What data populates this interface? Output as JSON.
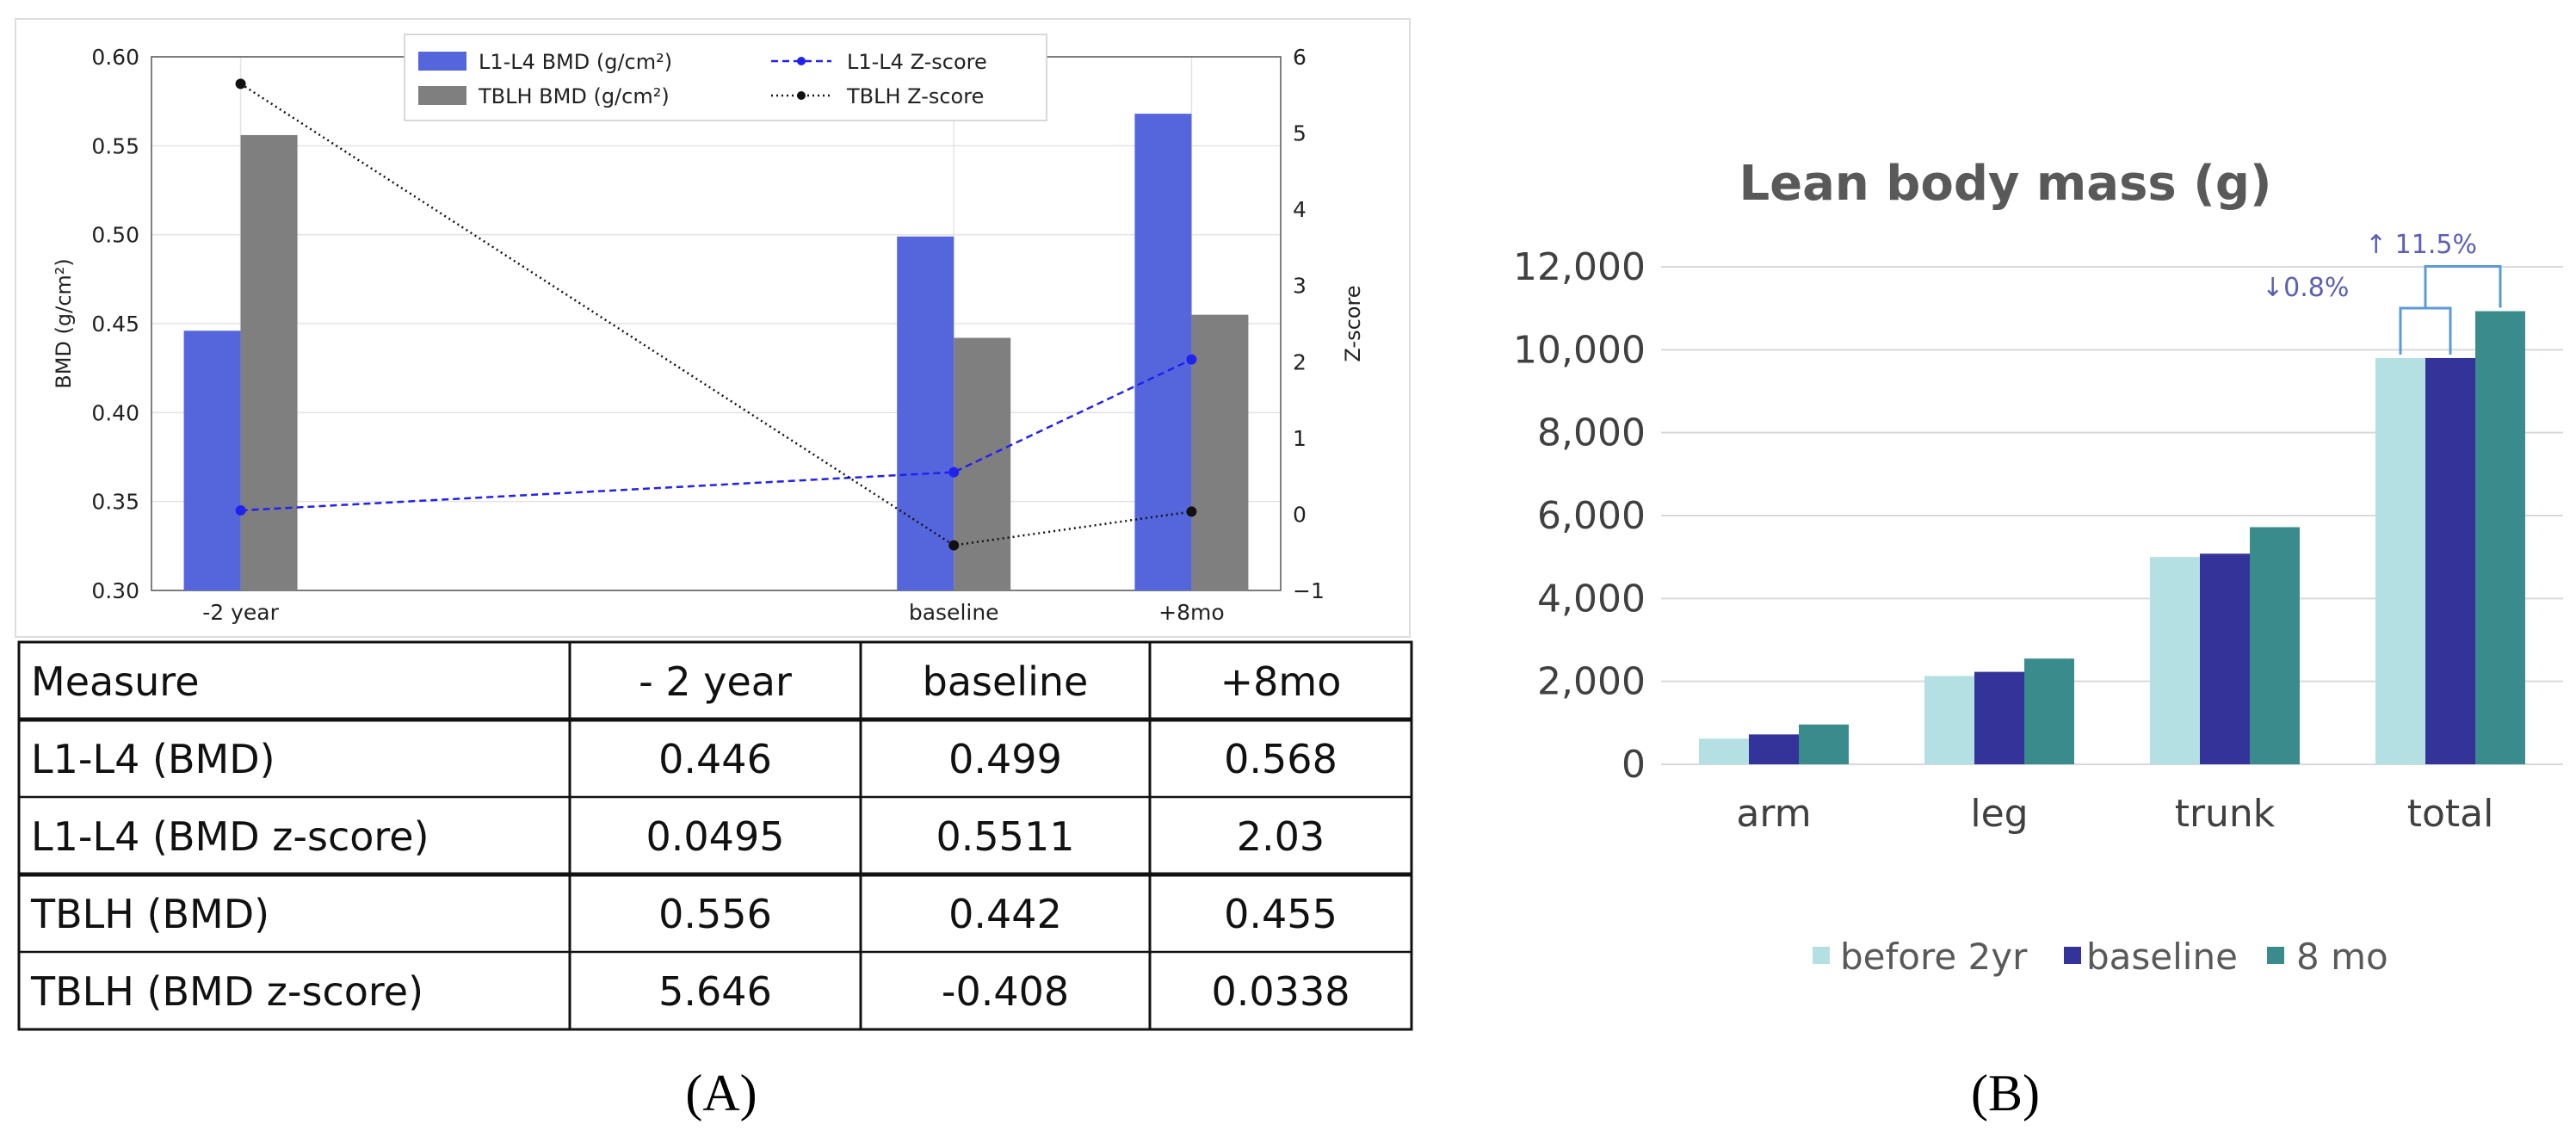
{
  "chart_data": [
    {
      "type": "bar+line",
      "panel_label": "(A)",
      "categories": [
        "-2 year",
        "baseline",
        "+8mo"
      ],
      "x": [
        -24,
        0,
        8
      ],
      "bar_series": [
        {
          "name": "L1-L4 BMD (g/cm²)",
          "values": [
            0.446,
            0.499,
            0.568
          ],
          "color": "#5566dd"
        },
        {
          "name": "TBLH BMD (g/cm²)",
          "values": [
            0.556,
            0.442,
            0.455
          ],
          "color": "#7f7f7f"
        }
      ],
      "line_series": [
        {
          "name": "L1-L4 Z-score",
          "values": [
            0.0495,
            0.5511,
            2.03
          ],
          "color": "#2222ee",
          "style": "dashed"
        },
        {
          "name": "TBLH Z-score",
          "values": [
            5.646,
            -0.408,
            0.0338
          ],
          "color": "#111111",
          "style": "dotted"
        }
      ],
      "ylabel": "BMD (g/cm²)",
      "ylim": [
        0.3,
        0.6
      ],
      "yticks": [
        "0.30",
        "0.35",
        "0.40",
        "0.45",
        "0.50",
        "0.55",
        "0.60"
      ],
      "y2label": "Z-score",
      "y2lim": [
        -1,
        6
      ],
      "y2ticks": [
        "−1",
        "0",
        "1",
        "2",
        "3",
        "4",
        "5",
        "6"
      ],
      "grid": true,
      "legend": "top-center"
    },
    {
      "type": "table",
      "columns": [
        "Measure",
        "- 2 year",
        "baseline",
        "+8mo"
      ],
      "rows": [
        [
          "L1-L4 (BMD)",
          "0.446",
          "0.499",
          "0.568"
        ],
        [
          "L1-L4 (BMD z-score)",
          "0.0495",
          "0.5511",
          "2.03"
        ],
        [
          "TBLH (BMD)",
          "0.556",
          "0.442",
          "0.455"
        ],
        [
          "TBLH (BMD z-score)",
          "5.646",
          "-0.408",
          "0.0338"
        ]
      ]
    },
    {
      "type": "bar",
      "panel_label": "(B)",
      "title": "Lean body mass (g)",
      "categories": [
        "arm",
        "leg",
        "trunk",
        "total"
      ],
      "series": [
        {
          "name": "before 2yr",
          "values": [
            620,
            2130,
            5000,
            9800
          ],
          "color": "#b4e0e3"
        },
        {
          "name": "baseline",
          "values": [
            720,
            2230,
            5080,
            9800
          ],
          "color": "#33339a"
        },
        {
          "name": "8 mo",
          "values": [
            960,
            2550,
            5720,
            10930
          ],
          "color": "#3a8c8c"
        }
      ],
      "ylim": [
        0,
        12000
      ],
      "yticks": [
        "0",
        "2,000",
        "4,000",
        "6,000",
        "8,000",
        "10,000",
        "12,000"
      ],
      "annotations": [
        "↓0.8%",
        "↑ 11.5%"
      ],
      "legend": "bottom",
      "grid": true
    }
  ]
}
